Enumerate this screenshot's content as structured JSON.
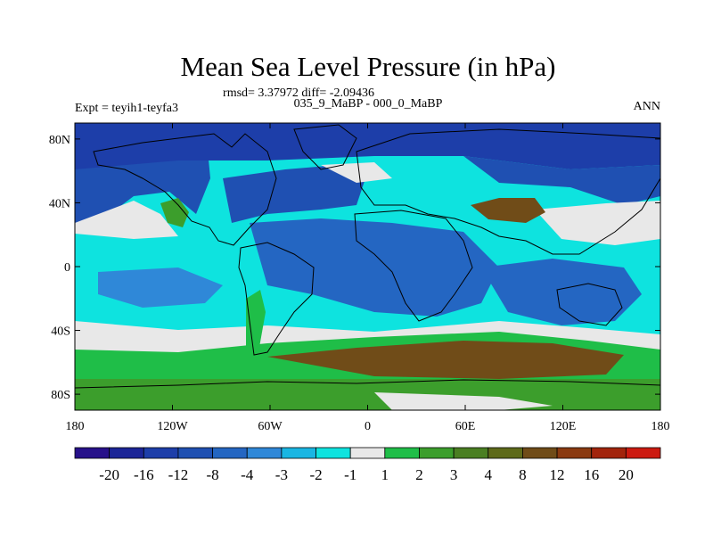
{
  "chart_data": {
    "type": "heatmap",
    "title": "Mean Sea Level Pressure (in hPa)",
    "stats_line": "rmsd= 3.37972 diff= -2.09436",
    "experiment_left": "Expt = teyih1-teyfa3",
    "experiment_center": "035_9_MaBP - 000_0_MaBP",
    "season_right": "ANN",
    "x_axis": {
      "range": [
        -180,
        180
      ],
      "ticks": [
        {
          "value": -180,
          "label": "180"
        },
        {
          "value": -120,
          "label": "120W"
        },
        {
          "value": -60,
          "label": "60W"
        },
        {
          "value": 0,
          "label": "0"
        },
        {
          "value": 60,
          "label": "60E"
        },
        {
          "value": 120,
          "label": "120E"
        },
        {
          "value": 180,
          "label": "180"
        }
      ]
    },
    "y_axis": {
      "range": [
        -90,
        90
      ],
      "ticks": [
        {
          "value": 80,
          "label": "80N"
        },
        {
          "value": 40,
          "label": "40N"
        },
        {
          "value": 0,
          "label": "0"
        },
        {
          "value": -40,
          "label": "40S"
        },
        {
          "value": -80,
          "label": "80S"
        }
      ]
    },
    "colorbar": {
      "colors": [
        "#27118a",
        "#1b2597",
        "#1d3ea9",
        "#1f50b2",
        "#2466c2",
        "#2f88d8",
        "#19b6e3",
        "#0ee3df",
        "#e8e8e8",
        "#1fbe48",
        "#3c9e2c",
        "#4a7f22",
        "#5e6a1a",
        "#704c18",
        "#8a3a10",
        "#a2240c",
        "#cc1a10"
      ],
      "labels": [
        "-20",
        "-16",
        "-12",
        "-8",
        "-4",
        "-3",
        "-2",
        "-1",
        "1",
        "2",
        "3",
        "4",
        "8",
        "12",
        "16",
        "20"
      ]
    },
    "regions": [
      {
        "name": "background-tropical",
        "color": "#0ee3df"
      },
      {
        "name": "north-pacific-low",
        "color": "#1f50b2"
      },
      {
        "name": "north-atlantic-low",
        "color": "#1f50b2"
      },
      {
        "name": "arctic-low",
        "color": "#1d3ea9"
      },
      {
        "name": "tropical-blue",
        "color": "#2466c2"
      },
      {
        "name": "south-ocean-band",
        "color": "#e8e8e8"
      },
      {
        "name": "southern-green-band",
        "color": "#1fbe48"
      },
      {
        "name": "southern-brown-band",
        "color": "#704c18"
      },
      {
        "name": "antarctic-green",
        "color": "#3c9e2c"
      },
      {
        "name": "north-america-high",
        "color": "#3c9e2c"
      },
      {
        "name": "tibet-high",
        "color": "#704c18"
      }
    ]
  }
}
